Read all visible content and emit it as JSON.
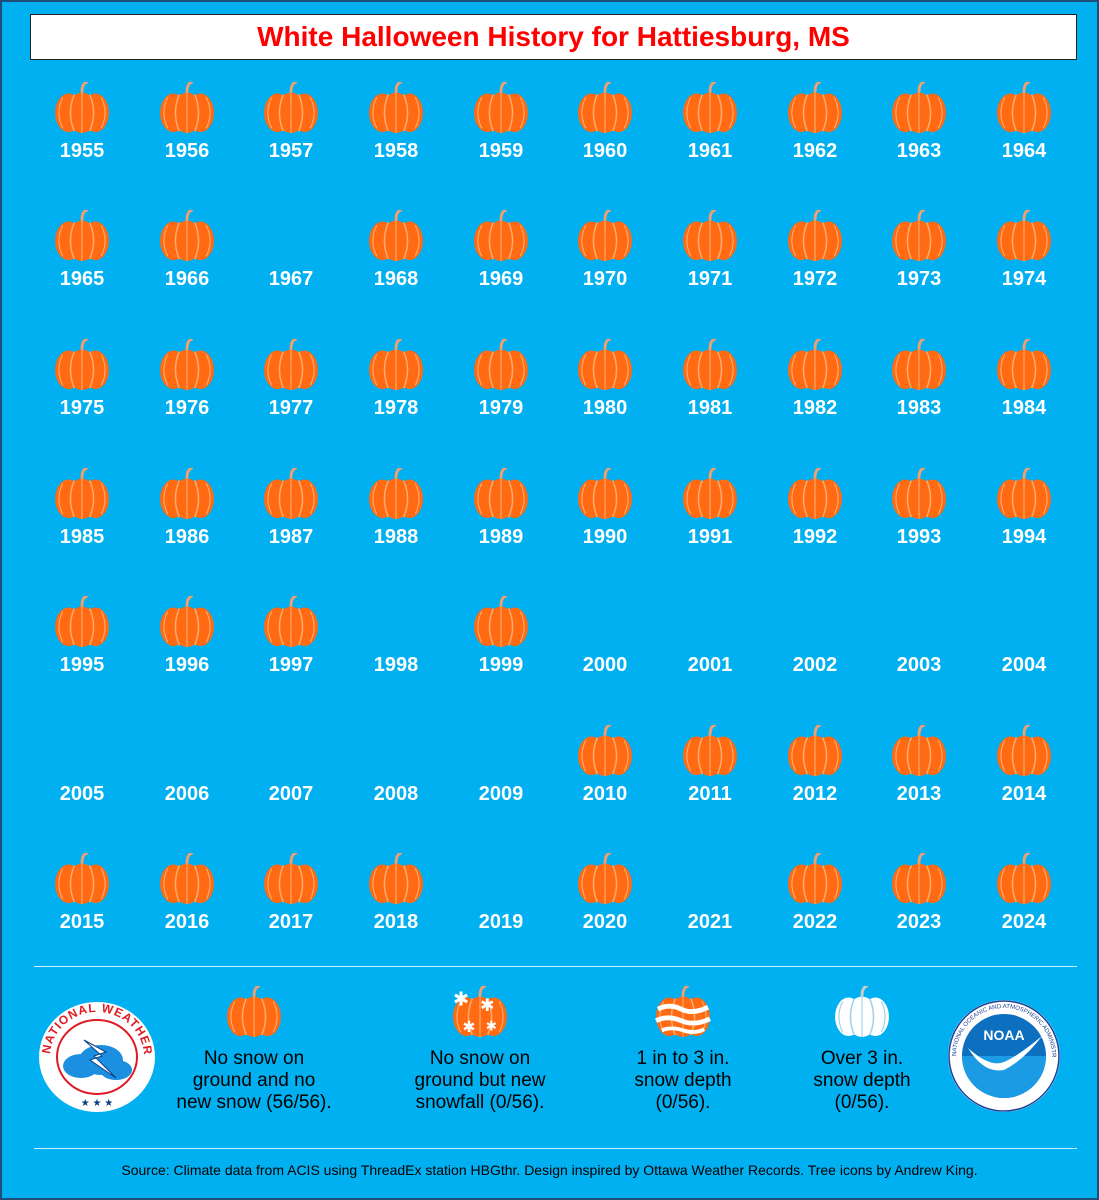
{
  "title": "White Halloween History for Hattiesburg, MS",
  "colors": {
    "background": "#00b0f0",
    "title": "#ff0000",
    "pumpkin": "#ff6a13",
    "year_text": "#ffffff"
  },
  "years": [
    {
      "year": "1955",
      "icon": "pumpkin-icon"
    },
    {
      "year": "1956",
      "icon": "pumpkin-icon"
    },
    {
      "year": "1957",
      "icon": "pumpkin-icon"
    },
    {
      "year": "1958",
      "icon": "pumpkin-icon"
    },
    {
      "year": "1959",
      "icon": "pumpkin-icon"
    },
    {
      "year": "1960",
      "icon": "pumpkin-icon"
    },
    {
      "year": "1961",
      "icon": "pumpkin-icon"
    },
    {
      "year": "1962",
      "icon": "pumpkin-icon"
    },
    {
      "year": "1963",
      "icon": "pumpkin-icon"
    },
    {
      "year": "1964",
      "icon": "pumpkin-icon"
    },
    {
      "year": "1965",
      "icon": "pumpkin-icon"
    },
    {
      "year": "1966",
      "icon": "pumpkin-icon"
    },
    {
      "year": "1967",
      "icon": ""
    },
    {
      "year": "1968",
      "icon": "pumpkin-icon"
    },
    {
      "year": "1969",
      "icon": "pumpkin-icon"
    },
    {
      "year": "1970",
      "icon": "pumpkin-icon"
    },
    {
      "year": "1971",
      "icon": "pumpkin-icon"
    },
    {
      "year": "1972",
      "icon": "pumpkin-icon"
    },
    {
      "year": "1973",
      "icon": "pumpkin-icon"
    },
    {
      "year": "1974",
      "icon": "pumpkin-icon"
    },
    {
      "year": "1975",
      "icon": "pumpkin-icon"
    },
    {
      "year": "1976",
      "icon": "pumpkin-icon"
    },
    {
      "year": "1977",
      "icon": "pumpkin-icon"
    },
    {
      "year": "1978",
      "icon": "pumpkin-icon"
    },
    {
      "year": "1979",
      "icon": "pumpkin-icon"
    },
    {
      "year": "1980",
      "icon": "pumpkin-icon"
    },
    {
      "year": "1981",
      "icon": "pumpkin-icon"
    },
    {
      "year": "1982",
      "icon": "pumpkin-icon"
    },
    {
      "year": "1983",
      "icon": "pumpkin-icon"
    },
    {
      "year": "1984",
      "icon": "pumpkin-icon"
    },
    {
      "year": "1985",
      "icon": "pumpkin-icon"
    },
    {
      "year": "1986",
      "icon": "pumpkin-icon"
    },
    {
      "year": "1987",
      "icon": "pumpkin-icon"
    },
    {
      "year": "1988",
      "icon": "pumpkin-icon"
    },
    {
      "year": "1989",
      "icon": "pumpkin-icon"
    },
    {
      "year": "1990",
      "icon": "pumpkin-icon"
    },
    {
      "year": "1991",
      "icon": "pumpkin-icon"
    },
    {
      "year": "1992",
      "icon": "pumpkin-icon"
    },
    {
      "year": "1993",
      "icon": "pumpkin-icon"
    },
    {
      "year": "1994",
      "icon": "pumpkin-icon"
    },
    {
      "year": "1995",
      "icon": "pumpkin-icon"
    },
    {
      "year": "1996",
      "icon": "pumpkin-icon"
    },
    {
      "year": "1997",
      "icon": "pumpkin-icon"
    },
    {
      "year": "1998",
      "icon": ""
    },
    {
      "year": "1999",
      "icon": "pumpkin-icon"
    },
    {
      "year": "2000",
      "icon": ""
    },
    {
      "year": "2001",
      "icon": ""
    },
    {
      "year": "2002",
      "icon": ""
    },
    {
      "year": "2003",
      "icon": ""
    },
    {
      "year": "2004",
      "icon": ""
    },
    {
      "year": "2005",
      "icon": ""
    },
    {
      "year": "2006",
      "icon": ""
    },
    {
      "year": "2007",
      "icon": ""
    },
    {
      "year": "2008",
      "icon": ""
    },
    {
      "year": "2009",
      "icon": ""
    },
    {
      "year": "2010",
      "icon": "pumpkin-icon"
    },
    {
      "year": "2011",
      "icon": "pumpkin-icon"
    },
    {
      "year": "2012",
      "icon": "pumpkin-icon"
    },
    {
      "year": "2013",
      "icon": "pumpkin-icon"
    },
    {
      "year": "2014",
      "icon": "pumpkin-icon"
    },
    {
      "year": "2015",
      "icon": "pumpkin-icon"
    },
    {
      "year": "2016",
      "icon": "pumpkin-icon"
    },
    {
      "year": "2017",
      "icon": "pumpkin-icon"
    },
    {
      "year": "2018",
      "icon": "pumpkin-icon"
    },
    {
      "year": "2019",
      "icon": ""
    },
    {
      "year": "2020",
      "icon": "pumpkin-icon"
    },
    {
      "year": "2021",
      "icon": ""
    },
    {
      "year": "2022",
      "icon": "pumpkin-icon"
    },
    {
      "year": "2023",
      "icon": "pumpkin-icon"
    },
    {
      "year": "2024",
      "icon": "pumpkin-icon"
    }
  ],
  "legend": [
    {
      "icon": "pumpkin-icon",
      "line1": "No snow on",
      "line2": "ground and no",
      "line3": "new snow (56/56)."
    },
    {
      "icon": "snowflake-pumpkin-icon",
      "line1": "No snow on",
      "line2": "ground but new",
      "line3": "snowfall (0/56)."
    },
    {
      "icon": "snow-striped-pumpkin-icon",
      "line1": "1 in to 3 in.",
      "line2": "snow depth",
      "line3": "(0/56)."
    },
    {
      "icon": "white-pumpkin-icon",
      "line1": "Over 3 in.",
      "line2": "snow depth",
      "line3": "(0/56)."
    }
  ],
  "logos": {
    "nws": {
      "icon": "nws-logo-icon",
      "text": "NATIONAL WEATHER SERVICE"
    },
    "noaa": {
      "icon": "noaa-logo-icon",
      "text": "NOAA"
    }
  },
  "source": "Source: Climate data from ACIS using ThreadEx station HBGthr. Design inspired by Ottawa Weather Records. Tree icons by Andrew King."
}
